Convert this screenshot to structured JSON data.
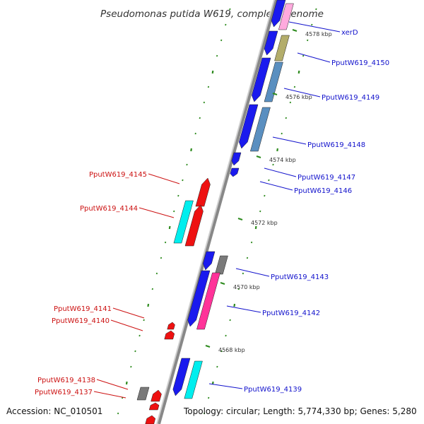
{
  "title": "Pseudomonas putida W619, complete genome",
  "footer": {
    "accession": "Accession: NC_010501",
    "topology": "Topology: circular; Length: 5,774,330 bp; Genes: 5,280"
  },
  "colors": {
    "backbone": "#888888",
    "tick": "#2e8b1e",
    "forward_label": "#1111cc",
    "reverse_label": "#cc1111"
  },
  "ticks": [
    "4578 kbp",
    "4576 kbp",
    "4574 kbp",
    "4572 kbp",
    "4570 kbp",
    "4568 kbp"
  ],
  "labels": {
    "forward": [
      "xerD",
      "PputW619_4150",
      "PputW619_4149",
      "PputW619_4148",
      "PputW619_4147",
      "PputW619_4146",
      "PputW619_4143",
      "PputW619_4142",
      "PputW619_4139"
    ],
    "reverse": [
      "PputW619_4145",
      "PputW619_4144",
      "PputW619_4141",
      "PputW619_4140",
      "PputW619_4138",
      "PputW619_4137"
    ]
  },
  "feature_colors": {
    "cds": "#1a1aee",
    "cds_reverse": "#ee1111",
    "cyan": "#00eeee",
    "magenta": "#ff3399",
    "pink": "#ffaadd",
    "khaki": "#b3ad6b",
    "steel": "#5a8fc0",
    "gray": "#7a7a7a"
  }
}
